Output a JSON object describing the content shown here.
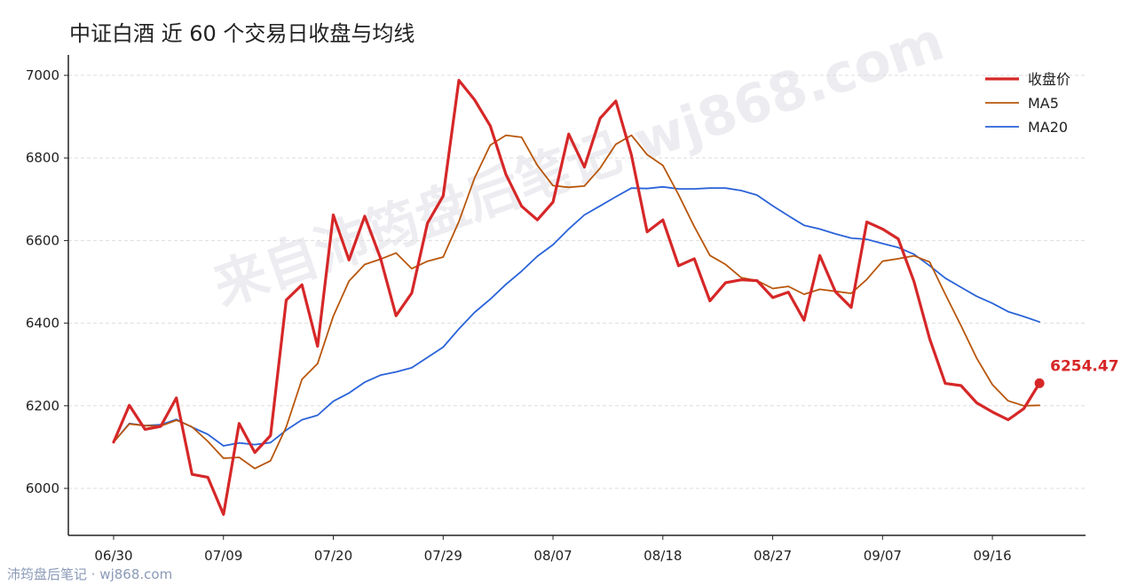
{
  "title": "中证白酒 近 60 个交易日收盘与均线",
  "watermark": "来自沛筠盘后笔记 wj868.com",
  "footer": "沛筠盘后笔记 · wj868.com",
  "end_label": "6254.47",
  "colors": {
    "close": "#d62728",
    "ma5": "#b8560b",
    "ma20": "#2a63d8",
    "grid": "#dddddd",
    "axis": "#222222"
  },
  "chart_data": {
    "type": "line",
    "title": "中证白酒 近 60 个交易日收盘与均线",
    "xlabel": "",
    "ylabel": "",
    "ylim": [
      5890,
      7060
    ],
    "yticks": [
      6000,
      6200,
      6400,
      6600,
      6800,
      7000
    ],
    "xtick_labels": [
      "06/30",
      "07/09",
      "07/20",
      "07/29",
      "08/07",
      "08/18",
      "08/27",
      "09/07",
      "09/16"
    ],
    "xtick_index": [
      0,
      7,
      14,
      21,
      28,
      35,
      42,
      49,
      56
    ],
    "grid": "horizontal dashed",
    "legend_position": "top-right",
    "series": [
      {
        "name": "收盘价",
        "values": [
          6112,
          6201,
          6143,
          6150,
          6219,
          6034,
          6027,
          5937,
          6157,
          6087,
          6128,
          6456,
          6493,
          6344,
          6662,
          6553,
          6659,
          6558,
          6418,
          6473,
          6642,
          6708,
          6988,
          6941,
          6878,
          6760,
          6683,
          6650,
          6693,
          6858,
          6778,
          6896,
          6938,
          6807,
          6621,
          6650,
          6539,
          6556,
          6454,
          6498,
          6505,
          6503,
          6462,
          6475,
          6407,
          6564,
          6476,
          6438,
          6645,
          6628,
          6604,
          6501,
          6362,
          6254,
          6249,
          6207,
          6185,
          6166,
          6193,
          6254.47
        ]
      },
      {
        "name": "MA5",
        "values": [
          6112,
          6156,
          6152,
          6151,
          6165,
          6149,
          6114,
          6073,
          6075,
          6048,
          6067,
          6149,
          6264,
          6302,
          6417,
          6502,
          6542,
          6555,
          6570,
          6532,
          6550,
          6560,
          6646,
          6751,
          6831,
          6855,
          6850,
          6782,
          6733,
          6729,
          6732,
          6775,
          6833,
          6855,
          6808,
          6782,
          6711,
          6634,
          6564,
          6542,
          6510,
          6503,
          6484,
          6489,
          6470,
          6482,
          6477,
          6472,
          6506,
          6550,
          6556,
          6563,
          6548,
          6470,
          6394,
          6315,
          6251,
          6212,
          6200,
          6201
        ]
      },
      {
        "name": "MA20",
        "values": [
          6112,
          6157,
          6152,
          6154,
          6167,
          6148,
          6131,
          6103,
          6110,
          6106,
          6111,
          6141,
          6166,
          6177,
          6211,
          6231,
          6257,
          6274,
          6282,
          6292,
          6317,
          6342,
          6386,
          6426,
          6458,
          6494,
          6526,
          6562,
          6590,
          6628,
          6662,
          6684,
          6706,
          6727,
          6726,
          6730,
          6725,
          6725,
          6727,
          6727,
          6721,
          6710,
          6684,
          6660,
          6637,
          6628,
          6616,
          6606,
          6603,
          6593,
          6583,
          6567,
          6539,
          6509,
          6487,
          6465,
          6448,
          6428,
          6416,
          6403
        ]
      }
    ]
  }
}
